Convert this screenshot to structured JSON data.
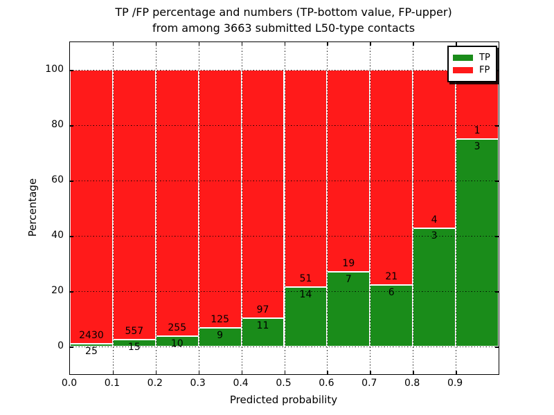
{
  "title": {
    "line1": "TP /FP percentage and numbers (TP-bottom value, FP-upper)",
    "line2": "from among 3663 submitted L50-type contacts"
  },
  "axes": {
    "xlabel": "Predicted probability",
    "ylabel": "Percentage",
    "x_tick_labels": [
      "0.0",
      "0.1",
      "0.2",
      "0.3",
      "0.4",
      "0.5",
      "0.6",
      "0.7",
      "0.8",
      "0.9"
    ],
    "y_tick_labels": [
      "0",
      "20",
      "40",
      "60",
      "80",
      "100"
    ]
  },
  "legend": {
    "items": [
      {
        "label": "TP",
        "color": "#1a8c1a"
      },
      {
        "label": "FP",
        "color": "#ff1a1a"
      }
    ]
  },
  "chart_data": {
    "type": "bar",
    "stacked": true,
    "normalized": "percent of bin total",
    "title": "TP /FP percentage and numbers (TP-bottom value, FP-upper) from among 3663 submitted L50-type contacts",
    "xlabel": "Predicted probability",
    "ylabel": "Percentage",
    "total_contacts": 3663,
    "xlim": [
      0.0,
      1.0
    ],
    "ylim": [
      -10,
      110
    ],
    "x_tick_values": [
      0.0,
      0.1,
      0.2,
      0.3,
      0.4,
      0.5,
      0.6,
      0.7,
      0.8,
      0.9
    ],
    "y_tick_values": [
      0,
      20,
      40,
      60,
      80,
      100
    ],
    "grid": "dotted",
    "legend_position": "upper right",
    "colors": {
      "tp": "#1a8c1a",
      "fp": "#ff1a1a",
      "bar_edge": "#ffffff"
    },
    "bins": [
      {
        "range": "0.0-0.1",
        "tp": 25,
        "fp": 2430,
        "tp_percent": 1.02
      },
      {
        "range": "0.1-0.2",
        "tp": 15,
        "fp": 557,
        "tp_percent": 2.62
      },
      {
        "range": "0.2-0.3",
        "tp": 10,
        "fp": 255,
        "tp_percent": 3.77
      },
      {
        "range": "0.3-0.4",
        "tp": 9,
        "fp": 125,
        "tp_percent": 6.72
      },
      {
        "range": "0.4-0.5",
        "tp": 11,
        "fp": 97,
        "tp_percent": 10.19
      },
      {
        "range": "0.5-0.6",
        "tp": 14,
        "fp": 51,
        "tp_percent": 21.54
      },
      {
        "range": "0.6-0.7",
        "tp": 7,
        "fp": 19,
        "tp_percent": 26.92
      },
      {
        "range": "0.7-0.8",
        "tp": 6,
        "fp": 21,
        "tp_percent": 22.22
      },
      {
        "range": "0.8-0.9",
        "tp": 3,
        "fp": 4,
        "tp_percent": 42.86
      },
      {
        "range": "0.9-1.0",
        "tp": 3,
        "fp": 1,
        "tp_percent": 75.0
      }
    ]
  }
}
